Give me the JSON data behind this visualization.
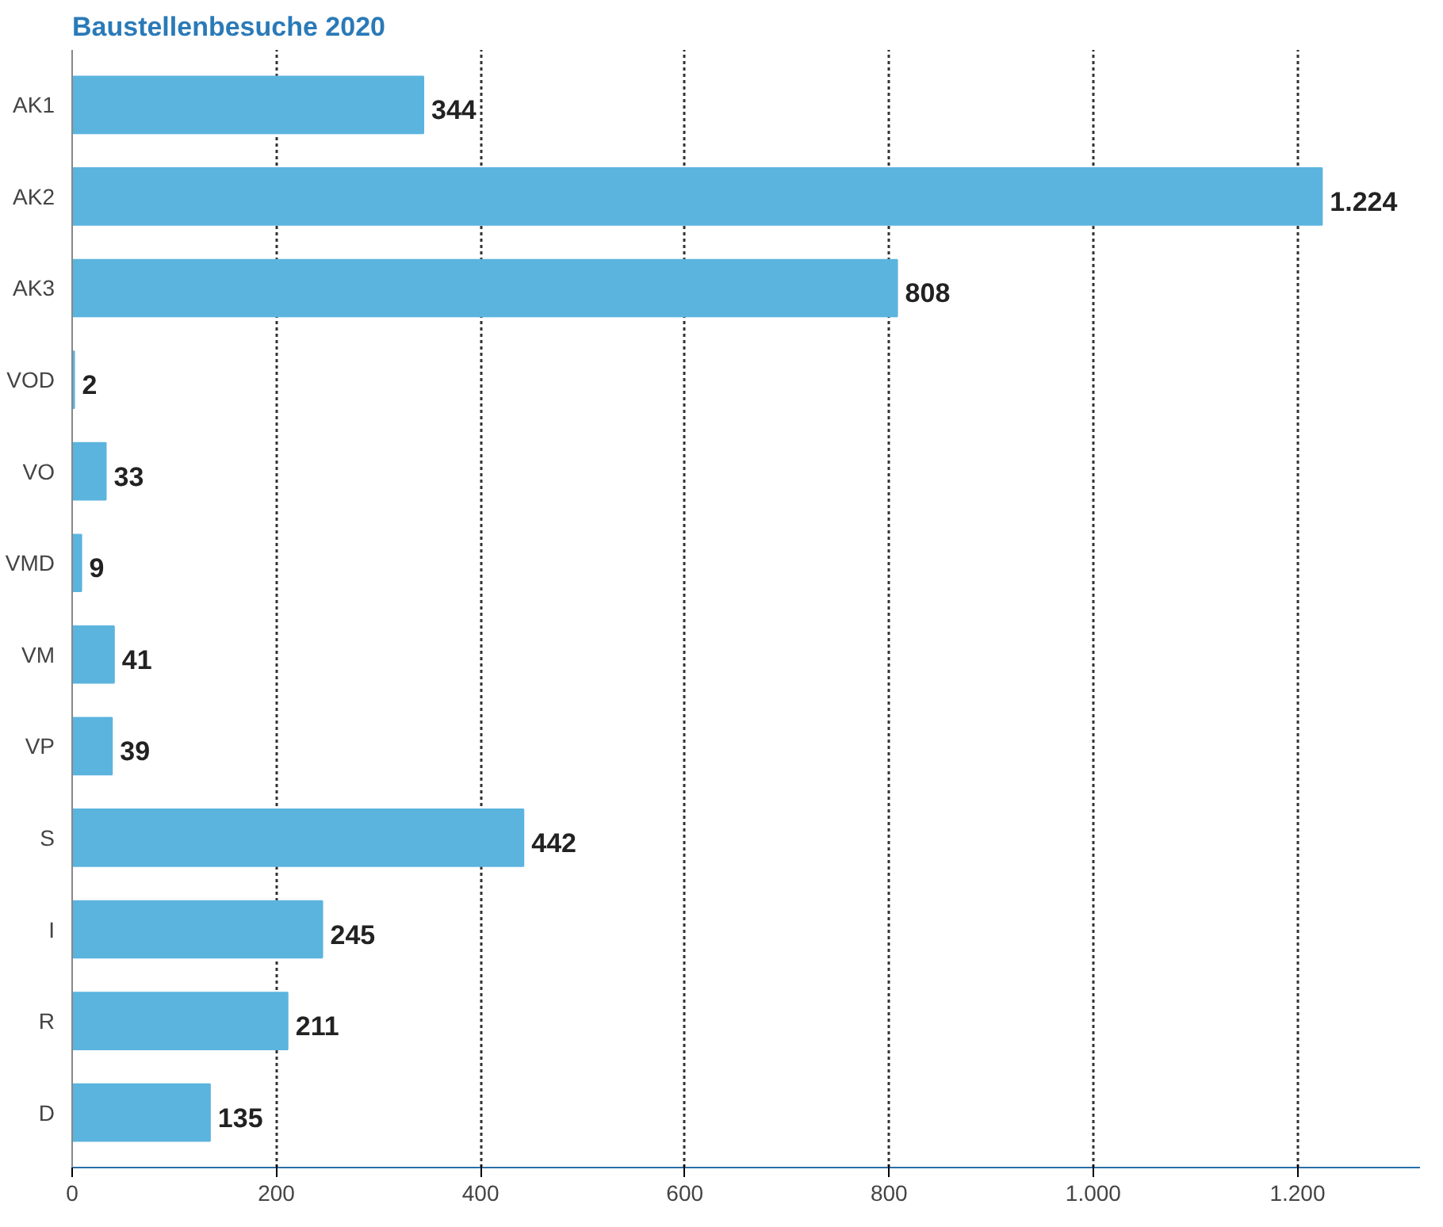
{
  "chart_data": {
    "type": "bar",
    "orientation": "horizontal",
    "title": "Baustellenbesuche 2020",
    "categories": [
      "AK1",
      "AK2",
      "AK3",
      "VOD",
      "VO",
      "VMD",
      "VM",
      "VP",
      "S",
      "I",
      "R",
      "D"
    ],
    "values": [
      344,
      1224,
      808,
      2,
      33,
      9,
      41,
      39,
      442,
      245,
      211,
      135
    ],
    "value_labels": [
      "344",
      "1.224",
      "808",
      "2",
      "33",
      "9",
      "41",
      "39",
      "442",
      "245",
      "211",
      "135"
    ],
    "color": "#5bb4de",
    "xlim": [
      0,
      1320
    ],
    "xticks": [
      0,
      200,
      400,
      600,
      800,
      {
        "value": 1000,
        "label": "1.000"
      },
      {
        "value": 1200,
        "label": "1.200"
      }
    ],
    "grid": "x"
  }
}
